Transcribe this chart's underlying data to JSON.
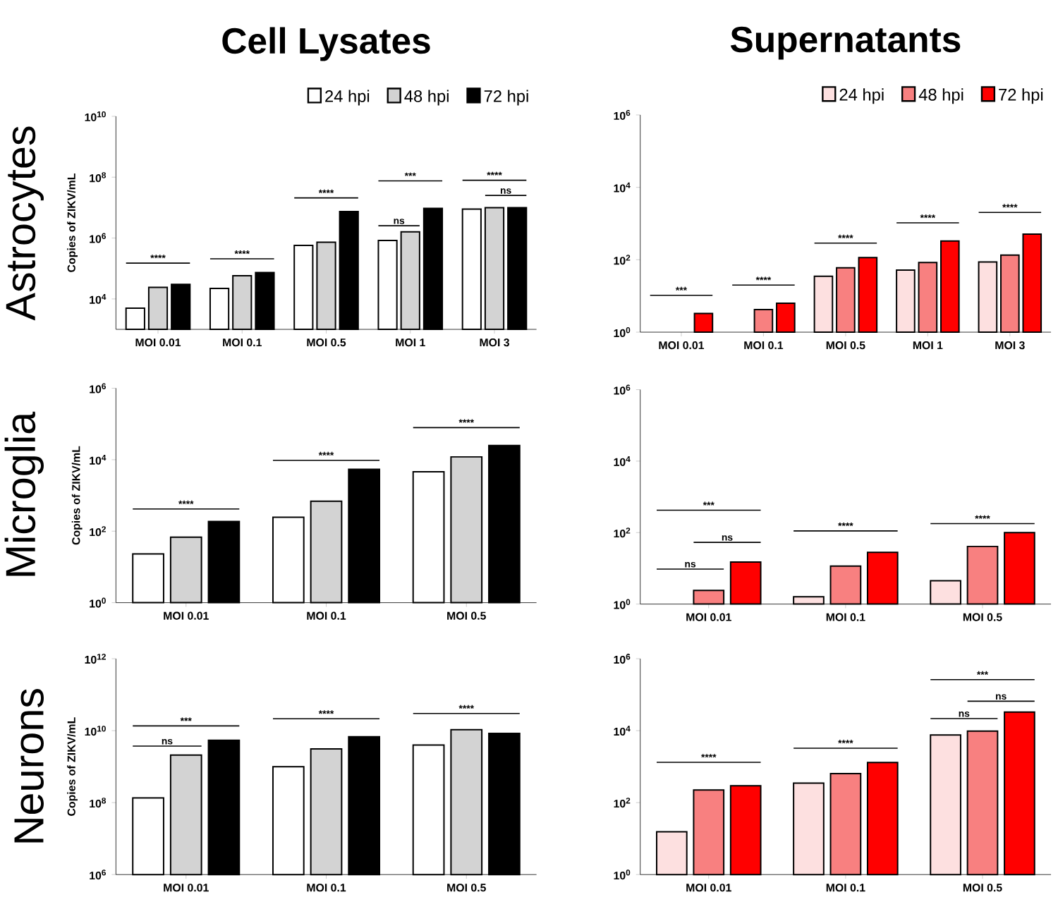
{
  "chart_data": [
    {
      "type": "bar",
      "title": "Cell Lysates",
      "ylabel": "Copies of ZIKV/mL",
      "log": true,
      "legend": "top right",
      "categories": [
        "MOI 0.01",
        "MOI 0.1",
        "MOI 0.5",
        "MOI 1",
        "MOI 3"
      ],
      "ylim": [
        1000,
        10000000000.0
      ],
      "yticks": [
        {
          "value": 10000.0,
          "label": "10$^{4}$"
        },
        {
          "value": 1000000.0,
          "label": "10$^{6}$"
        },
        {
          "value": 100000000.0,
          "label": "10$^{8}$"
        },
        {
          "value": 10000000000.0,
          "label": "10$^{10}$"
        }
      ],
      "series": [
        {
          "name": "24 hpi",
          "color": "#ffffff",
          "values": [
            5000,
            22000,
            570000,
            830000,
            8900000
          ]
        },
        {
          "name": "48 hpi",
          "color": "#d3d3d3",
          "values": [
            24000,
            58000,
            730000,
            1600000,
            10000000
          ]
        },
        {
          "name": "72 hpi",
          "color": "#000000",
          "values": [
            30000,
            74000,
            7400000,
            9500000,
            10000000
          ]
        }
      ],
      "annotations": [
        "Astrocytes",
        "****",
        "****",
        "****",
        "***",
        "ns",
        "****",
        "ns"
      ]
    },
    {
      "type": "bar",
      "title": "Supernatants",
      "log": true,
      "legend": "top right",
      "categories": [
        "MOI 0.01",
        "MOI 0.1",
        "MOI 0.5",
        "MOI 1",
        "MOI 3"
      ],
      "ylim": [
        1,
        1000000.0
      ],
      "yticks": [
        {
          "value": 1,
          "label": "10$^{0}$"
        },
        {
          "value": 100,
          "label": "10$^{2}$"
        },
        {
          "value": 10000.0,
          "label": "10$^{4}$"
        },
        {
          "value": 1000000.0,
          "label": "10$^{6}$"
        }
      ],
      "series": [
        {
          "name": "24 hpi",
          "color": "#fde0e0",
          "values": [
            null,
            null,
            35,
            52,
            87
          ]
        },
        {
          "name": "48 hpi",
          "color": "#f88080",
          "values": [
            null,
            4.2,
            60,
            84,
            135
          ]
        },
        {
          "name": "72 hpi",
          "color": "#ff0000",
          "values": [
            3.3,
            6.3,
            115,
            330,
            510
          ]
        }
      ],
      "annotations": [
        "***",
        "****",
        "****",
        "****",
        "****"
      ]
    },
    {
      "type": "bar",
      "ylabel": "Copies of ZIKV/mL",
      "log": true,
      "categories": [
        "MOI 0.01",
        "MOI 0.1",
        "MOI 0.5"
      ],
      "ylim": [
        1,
        1000000.0
      ],
      "yticks": [
        {
          "value": 1,
          "label": "10$^{0}$"
        },
        {
          "value": 100,
          "label": "10$^{2}$"
        },
        {
          "value": 10000.0,
          "label": "10$^{4}$"
        },
        {
          "value": 1000000.0,
          "label": "10$^{6}$"
        }
      ],
      "series": [
        {
          "color": "#ffffff",
          "values": [
            23,
            245,
            4600
          ]
        },
        {
          "color": "#d3d3d3",
          "values": [
            68,
            690,
            12000
          ]
        },
        {
          "color": "#000000",
          "values": [
            187,
            5400,
            25000
          ]
        }
      ],
      "annotations": [
        "Microglia",
        "****",
        "****",
        "****"
      ]
    },
    {
      "type": "bar",
      "log": true,
      "categories": [
        "MOI 0.01",
        "MOI 0.1",
        "MOI 0.5"
      ],
      "ylim": [
        1,
        1000000.0
      ],
      "yticks": [
        {
          "value": 1,
          "label": "10$^{0}$"
        },
        {
          "value": 100,
          "label": "10$^{2}$"
        },
        {
          "value": 10000.0,
          "label": "10$^{4}$"
        },
        {
          "value": 1000000.0,
          "label": "10$^{6}$"
        }
      ],
      "series": [
        {
          "color": "#fde0e0",
          "values": [
            null,
            1.6,
            4.5
          ]
        },
        {
          "color": "#f88080",
          "values": [
            2.4,
            11.5,
            41
          ]
        },
        {
          "color": "#ff0000",
          "values": [
            15,
            28,
            100
          ]
        }
      ],
      "annotations": [
        "***",
        "ns",
        "ns",
        "****",
        "****"
      ]
    },
    {
      "type": "bar",
      "ylabel": "Copies of ZIKV/mL",
      "log": true,
      "categories": [
        "MOI 0.01",
        "MOI 0.1",
        "MOI 0.5"
      ],
      "ylim": [
        1000000.0,
        1000000000000.0
      ],
      "yticks": [
        {
          "value": 1000000.0,
          "label": "10$^{6}$"
        },
        {
          "value": 100000000.0,
          "label": "10$^{8}$"
        },
        {
          "value": 10000000000.0,
          "label": "10$^{10}$"
        },
        {
          "value": 1000000000000.0,
          "label": "10$^{12}$"
        }
      ],
      "series": [
        {
          "color": "#ffffff",
          "values": [
            135000000,
            1000000000,
            4000000000
          ]
        },
        {
          "color": "#d3d3d3",
          "values": [
            2100000000,
            3100000000,
            10700000000
          ]
        },
        {
          "color": "#000000",
          "values": [
            5400000000,
            6800000000,
            8400000000
          ]
        }
      ],
      "annotations": [
        "Neurons",
        "***",
        "ns",
        "****",
        "****"
      ]
    },
    {
      "type": "bar",
      "log": true,
      "categories": [
        "MOI 0.01",
        "MOI 0.1",
        "MOI 0.5"
      ],
      "ylim": [
        1,
        1000000.0
      ],
      "yticks": [
        {
          "value": 1,
          "label": "10$^{0}$"
        },
        {
          "value": 100,
          "label": "10$^{2}$"
        },
        {
          "value": 10000.0,
          "label": "10$^{4}$"
        },
        {
          "value": 1000000.0,
          "label": "10$^{6}$"
        }
      ],
      "series": [
        {
          "color": "#fde0e0",
          "values": [
            15.5,
            350,
            7600
          ]
        },
        {
          "color": "#f88080",
          "values": [
            225,
            640,
            9700
          ]
        },
        {
          "color": "#ff0000",
          "values": [
            295,
            1300,
            33000
          ]
        }
      ],
      "annotations": [
        "****",
        "****",
        "***",
        "ns",
        "ns"
      ]
    }
  ]
}
